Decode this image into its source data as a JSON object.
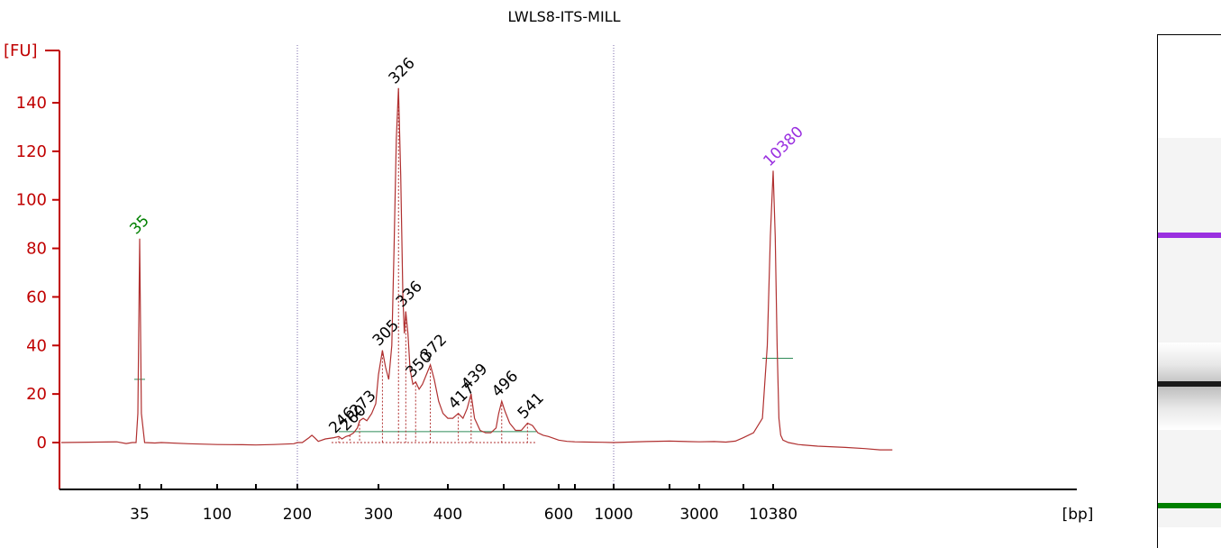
{
  "title": "LWLS8-ITS-MILL",
  "colors": {
    "axis": "#c00000",
    "trace": "#b03030",
    "lower_marker": "#008000",
    "upper_marker": "#9a30e0",
    "peaks": "#000000",
    "baseline": "#2e8b57"
  },
  "chart_data": {
    "type": "line",
    "title": "LWLS8-ITS-MILL",
    "ylabel": "[FU]",
    "xlabel": "[bp]",
    "ylim": [
      -19,
      159
    ],
    "y_ticks": [
      0,
      20,
      40,
      60,
      80,
      100,
      120,
      140
    ],
    "x_ticks": [
      "35",
      "100",
      "200",
      "300",
      "400",
      "600",
      "1000",
      "3000",
      "10380"
    ],
    "x_scale": "ladder (piecewise, Bioanalyzer size standard)",
    "ladder_sizes": [
      35,
      50,
      100,
      150,
      200,
      300,
      400,
      500,
      600,
      700,
      1000,
      2000,
      3000,
      7000,
      10380
    ],
    "vertical_markers_bp": [
      200,
      1000
    ],
    "peaks": [
      {
        "label": "35",
        "bp": 35,
        "fu": 84,
        "marker": "lower"
      },
      {
        "label": "246",
        "bp": 246,
        "fu": 2,
        "marker": null
      },
      {
        "label": "260",
        "bp": 260,
        "fu": 3,
        "marker": null
      },
      {
        "label": "273",
        "bp": 273,
        "fu": 9,
        "marker": null
      },
      {
        "label": "305",
        "bp": 305,
        "fu": 38,
        "marker": null
      },
      {
        "label": "326",
        "bp": 326,
        "fu": 146,
        "marker": null
      },
      {
        "label": "336",
        "bp": 336,
        "fu": 54,
        "marker": null
      },
      {
        "label": "350",
        "bp": 350,
        "fu": 25,
        "marker": null
      },
      {
        "label": "372",
        "bp": 372,
        "fu": 32,
        "marker": null
      },
      {
        "label": "417",
        "bp": 417,
        "fu": 12,
        "marker": null
      },
      {
        "label": "439",
        "bp": 439,
        "fu": 20,
        "marker": null
      },
      {
        "label": "496",
        "bp": 496,
        "fu": 17,
        "marker": null
      },
      {
        "label": "541",
        "bp": 541,
        "fu": 8,
        "marker": null
      },
      {
        "label": "10380",
        "bp": 10380,
        "fu": 112,
        "marker": "upper"
      }
    ],
    "trace_points": [
      [
        20,
        0
      ],
      [
        24,
        0.3
      ],
      [
        28,
        -0.4
      ],
      [
        31,
        0
      ],
      [
        33,
        0
      ],
      [
        34,
        12
      ],
      [
        35,
        84
      ],
      [
        36,
        12
      ],
      [
        38,
        0
      ],
      [
        45,
        -0.2
      ],
      [
        50,
        0
      ],
      [
        70,
        -0.5
      ],
      [
        100,
        -0.8
      ],
      [
        130,
        -0.9
      ],
      [
        150,
        -1
      ],
      [
        170,
        -0.8
      ],
      [
        195,
        -0.5
      ],
      [
        200,
        0
      ],
      [
        205,
        0
      ],
      [
        212,
        2
      ],
      [
        215,
        3
      ],
      [
        218,
        2
      ],
      [
        222,
        0.5
      ],
      [
        230,
        1.5
      ],
      [
        240,
        2
      ],
      [
        246,
        2.5
      ],
      [
        250,
        1.5
      ],
      [
        255,
        2.5
      ],
      [
        260,
        3
      ],
      [
        265,
        4
      ],
      [
        270,
        6
      ],
      [
        273,
        9
      ],
      [
        278,
        10
      ],
      [
        283,
        9
      ],
      [
        290,
        12
      ],
      [
        296,
        16
      ],
      [
        300,
        28
      ],
      [
        305,
        38
      ],
      [
        309,
        31
      ],
      [
        313,
        26
      ],
      [
        317,
        40
      ],
      [
        320,
        80
      ],
      [
        323,
        125
      ],
      [
        326,
        146
      ],
      [
        329,
        110
      ],
      [
        332,
        60
      ],
      [
        334,
        45
      ],
      [
        336,
        54
      ],
      [
        339,
        45
      ],
      [
        342,
        30
      ],
      [
        346,
        24
      ],
      [
        350,
        25
      ],
      [
        355,
        22
      ],
      [
        360,
        24
      ],
      [
        366,
        28
      ],
      [
        372,
        32
      ],
      [
        378,
        26
      ],
      [
        385,
        17
      ],
      [
        392,
        12
      ],
      [
        400,
        10
      ],
      [
        408,
        10
      ],
      [
        417,
        12
      ],
      [
        425,
        10
      ],
      [
        432,
        14
      ],
      [
        439,
        20
      ],
      [
        445,
        10
      ],
      [
        455,
        5
      ],
      [
        465,
        4
      ],
      [
        475,
        4
      ],
      [
        485,
        6
      ],
      [
        490,
        12
      ],
      [
        496,
        17
      ],
      [
        502,
        13
      ],
      [
        510,
        8
      ],
      [
        520,
        5
      ],
      [
        530,
        5
      ],
      [
        541,
        8
      ],
      [
        550,
        7
      ],
      [
        560,
        4
      ],
      [
        570,
        3
      ],
      [
        580,
        2.5
      ],
      [
        600,
        1
      ],
      [
        650,
        0.5
      ],
      [
        700,
        0.3
      ],
      [
        800,
        0.2
      ],
      [
        900,
        0.1
      ],
      [
        1000,
        0
      ],
      [
        1500,
        0.4
      ],
      [
        2000,
        0.6
      ],
      [
        3000,
        0.3
      ],
      [
        4000,
        0.4
      ],
      [
        5000,
        0.2
      ],
      [
        6000,
        0.6
      ],
      [
        7000,
        2
      ],
      [
        8000,
        4
      ],
      [
        9000,
        10
      ],
      [
        9600,
        40
      ],
      [
        10000,
        85
      ],
      [
        10380,
        112
      ],
      [
        10700,
        85
      ],
      [
        11000,
        40
      ],
      [
        11300,
        10
      ],
      [
        11600,
        3
      ],
      [
        12000,
        1
      ],
      [
        13000,
        0
      ],
      [
        15000,
        -0.8
      ],
      [
        20000,
        -1.5
      ],
      [
        30000,
        -2
      ],
      [
        40000,
        -2.5
      ],
      [
        50000,
        -3
      ],
      [
        60000,
        -3
      ]
    ],
    "baseline_fu": 4.5
  },
  "gel": {
    "bands": [
      {
        "name": "upper-marker-band",
        "position": 0.39,
        "color": "#9a30e0"
      },
      {
        "name": "sample-band",
        "position": 0.68,
        "color": "#1a1a1a"
      },
      {
        "name": "lower-marker-band",
        "position": 0.917,
        "color": "#008000"
      }
    ]
  }
}
